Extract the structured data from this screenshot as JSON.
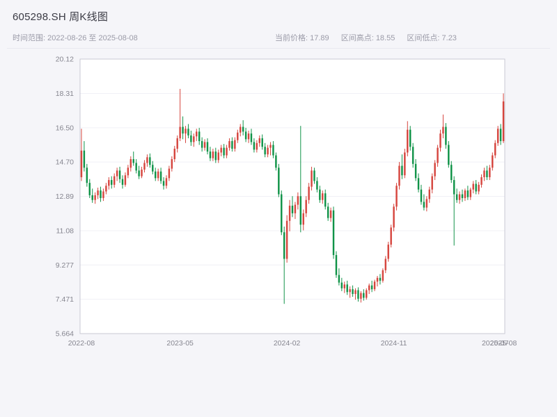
{
  "header": {
    "title": "605298.SH 周K线图"
  },
  "subheader": {
    "time_range": "时间范围: 2022-08-26 至 2025-08-08",
    "stats": [
      "当前价格: 17.89",
      "区间高点: 18.55",
      "区间低点: 7.23"
    ]
  },
  "chart_data": {
    "type": "candlestick",
    "symbol": "605298.SH",
    "period": "weekly",
    "title": "605298.SH 周K线图",
    "start_date": "2022-08-26",
    "end_date": "2025-08-08",
    "current_price": 17.89,
    "range_high": 18.55,
    "range_low": 7.23,
    "y_min": 5.664,
    "y_max": 20.12,
    "grid": true,
    "legend": "none",
    "up_color": "#d6453e",
    "down_color": "#109348",
    "axis_text_color": "#85858f",
    "plot_bg_color": "#ffffff",
    "y_ticks": [
      {
        "label": "20.12",
        "value": 20.12
      },
      {
        "label": "18.31",
        "value": 18.31
      },
      {
        "label": "16.50",
        "value": 16.5
      },
      {
        "label": "14.70",
        "value": 14.7
      },
      {
        "label": "12.89",
        "value": 12.89
      },
      {
        "label": "11.08",
        "value": 11.08
      },
      {
        "label": "9.277",
        "value": 9.277
      },
      {
        "label": "7.471",
        "value": 7.471
      },
      {
        "label": "5.664",
        "value": 5.664
      }
    ],
    "x_ticks": [
      {
        "label": "2022-08",
        "index": 0
      },
      {
        "label": "2023-05",
        "index": 36
      },
      {
        "label": "2024-02",
        "index": 75
      },
      {
        "label": "2024-11",
        "index": 114
      },
      {
        "label": "2025-07",
        "index": 151
      },
      {
        "label": "2025-08",
        "index": 154
      }
    ],
    "candles": [
      [
        13.9,
        16.45,
        13.7,
        15.3
      ],
      [
        15.3,
        15.8,
        14.2,
        14.4
      ],
      [
        14.4,
        14.6,
        13.4,
        13.6
      ],
      [
        13.6,
        13.8,
        12.8,
        12.95
      ],
      [
        12.95,
        13.3,
        12.55,
        12.7
      ],
      [
        12.7,
        13.1,
        12.5,
        12.95
      ],
      [
        12.95,
        13.35,
        12.75,
        13.2
      ],
      [
        13.2,
        13.4,
        12.6,
        12.8
      ],
      [
        12.8,
        13.3,
        12.65,
        13.15
      ],
      [
        13.15,
        13.6,
        13.0,
        13.45
      ],
      [
        13.45,
        13.9,
        13.25,
        13.75
      ],
      [
        13.75,
        13.95,
        13.3,
        13.5
      ],
      [
        13.5,
        14.1,
        13.35,
        13.95
      ],
      [
        13.95,
        14.4,
        13.7,
        14.25
      ],
      [
        14.25,
        14.45,
        13.6,
        13.8
      ],
      [
        13.8,
        14.0,
        13.3,
        13.5
      ],
      [
        13.5,
        14.15,
        13.4,
        14.0
      ],
      [
        14.0,
        14.55,
        13.85,
        14.4
      ],
      [
        14.4,
        15.0,
        14.2,
        14.85
      ],
      [
        14.85,
        15.25,
        14.5,
        14.65
      ],
      [
        14.65,
        14.85,
        14.1,
        14.25
      ],
      [
        14.25,
        14.5,
        13.8,
        13.95
      ],
      [
        13.95,
        14.45,
        13.85,
        14.3
      ],
      [
        14.3,
        14.8,
        14.15,
        14.65
      ],
      [
        14.65,
        15.1,
        14.45,
        14.95
      ],
      [
        14.95,
        15.15,
        14.4,
        14.55
      ],
      [
        14.55,
        14.75,
        14.05,
        14.2
      ],
      [
        14.2,
        14.4,
        13.7,
        13.85
      ],
      [
        13.85,
        14.35,
        13.7,
        14.2
      ],
      [
        14.2,
        14.4,
        13.55,
        13.7
      ],
      [
        13.7,
        13.9,
        13.25,
        13.45
      ],
      [
        13.45,
        14.0,
        13.3,
        13.85
      ],
      [
        13.85,
        14.5,
        13.7,
        14.35
      ],
      [
        14.35,
        15.0,
        14.2,
        14.85
      ],
      [
        14.85,
        15.55,
        14.7,
        15.4
      ],
      [
        15.4,
        16.1,
        15.2,
        15.95
      ],
      [
        15.95,
        18.55,
        15.8,
        16.55
      ],
      [
        16.55,
        17.1,
        15.9,
        16.2
      ],
      [
        16.2,
        16.6,
        15.7,
        16.45
      ],
      [
        16.45,
        16.7,
        15.95,
        16.1
      ],
      [
        16.1,
        16.35,
        15.55,
        15.75
      ],
      [
        15.75,
        16.2,
        15.5,
        16.05
      ],
      [
        16.05,
        16.45,
        15.8,
        16.3
      ],
      [
        16.3,
        16.5,
        15.6,
        15.8
      ],
      [
        15.8,
        16.0,
        15.25,
        15.45
      ],
      [
        15.45,
        15.9,
        15.3,
        15.75
      ],
      [
        15.75,
        15.95,
        15.1,
        15.25
      ],
      [
        15.25,
        15.5,
        14.75,
        14.9
      ],
      [
        14.9,
        15.4,
        14.75,
        15.25
      ],
      [
        15.25,
        15.45,
        14.65,
        14.8
      ],
      [
        14.8,
        15.35,
        14.65,
        15.2
      ],
      [
        15.2,
        15.6,
        15.0,
        15.45
      ],
      [
        15.45,
        15.65,
        14.9,
        15.05
      ],
      [
        15.05,
        15.6,
        14.9,
        15.45
      ],
      [
        15.45,
        15.95,
        15.3,
        15.8
      ],
      [
        15.8,
        16.0,
        15.25,
        15.4
      ],
      [
        15.4,
        16.0,
        15.25,
        15.85
      ],
      [
        15.85,
        16.4,
        15.7,
        16.25
      ],
      [
        16.25,
        16.7,
        16.05,
        16.55
      ],
      [
        16.55,
        16.9,
        16.1,
        16.3
      ],
      [
        16.3,
        16.5,
        15.75,
        15.9
      ],
      [
        15.9,
        16.35,
        15.7,
        16.2
      ],
      [
        16.2,
        16.45,
        15.6,
        15.75
      ],
      [
        15.75,
        15.95,
        15.2,
        15.35
      ],
      [
        15.35,
        15.85,
        15.2,
        15.7
      ],
      [
        15.7,
        16.1,
        15.5,
        15.95
      ],
      [
        15.95,
        16.15,
        15.35,
        15.5
      ],
      [
        15.5,
        15.7,
        14.95,
        15.1
      ],
      [
        15.1,
        15.6,
        14.95,
        15.45
      ],
      [
        15.45,
        15.75,
        15.05,
        15.6
      ],
      [
        15.6,
        15.8,
        14.9,
        15.05
      ],
      [
        15.05,
        15.2,
        14.25,
        14.4
      ],
      [
        14.4,
        14.6,
        12.85,
        13.0
      ],
      [
        13.0,
        13.2,
        10.85,
        11.0
      ],
      [
        11.0,
        11.3,
        7.23,
        9.6
      ],
      [
        9.6,
        11.9,
        9.4,
        11.6
      ],
      [
        11.6,
        12.7,
        11.05,
        12.4
      ],
      [
        12.4,
        12.9,
        11.8,
        12.0
      ],
      [
        12.0,
        12.6,
        11.7,
        12.45
      ],
      [
        12.45,
        13.1,
        12.2,
        12.9
      ],
      [
        12.9,
        16.6,
        11.0,
        11.4
      ],
      [
        11.4,
        12.2,
        11.1,
        12.0
      ],
      [
        12.0,
        12.9,
        11.8,
        12.7
      ],
      [
        12.7,
        13.6,
        12.5,
        13.4
      ],
      [
        13.4,
        14.45,
        13.2,
        14.25
      ],
      [
        14.25,
        14.4,
        13.55,
        13.7
      ],
      [
        13.7,
        13.9,
        13.1,
        13.25
      ],
      [
        13.25,
        13.45,
        12.55,
        12.7
      ],
      [
        12.7,
        13.2,
        12.5,
        13.05
      ],
      [
        13.05,
        13.25,
        12.2,
        12.35
      ],
      [
        12.35,
        12.55,
        11.6,
        11.75
      ],
      [
        11.75,
        12.3,
        11.55,
        12.15
      ],
      [
        12.15,
        12.35,
        9.6,
        9.8
      ],
      [
        9.8,
        10.0,
        8.6,
        8.75
      ],
      [
        8.75,
        9.1,
        8.2,
        8.35
      ],
      [
        8.35,
        8.6,
        7.9,
        8.05
      ],
      [
        8.05,
        8.4,
        7.8,
        8.25
      ],
      [
        8.25,
        8.45,
        7.7,
        7.85
      ],
      [
        7.85,
        8.15,
        7.55,
        8.0
      ],
      [
        8.0,
        8.2,
        7.6,
        7.75
      ],
      [
        7.75,
        8.05,
        7.45,
        7.95
      ],
      [
        7.95,
        8.1,
        7.35,
        7.5
      ],
      [
        7.5,
        7.9,
        7.3,
        7.8
      ],
      [
        7.8,
        8.0,
        7.4,
        7.55
      ],
      [
        7.55,
        8.05,
        7.45,
        7.95
      ],
      [
        7.95,
        8.3,
        7.75,
        8.2
      ],
      [
        8.2,
        8.45,
        7.85,
        8.0
      ],
      [
        8.0,
        8.5,
        7.9,
        8.4
      ],
      [
        8.4,
        8.7,
        8.15,
        8.6
      ],
      [
        8.6,
        8.8,
        8.25,
        8.45
      ],
      [
        8.45,
        9.1,
        8.35,
        9.0
      ],
      [
        9.0,
        9.75,
        8.85,
        9.6
      ],
      [
        9.6,
        10.5,
        9.45,
        10.35
      ],
      [
        10.35,
        11.4,
        10.2,
        11.25
      ],
      [
        11.25,
        12.5,
        11.05,
        12.35
      ],
      [
        12.35,
        13.6,
        12.15,
        13.45
      ],
      [
        13.45,
        14.7,
        13.25,
        14.5
      ],
      [
        14.5,
        15.1,
        13.8,
        14.0
      ],
      [
        14.0,
        15.4,
        13.85,
        15.2
      ],
      [
        15.2,
        16.85,
        15.0,
        16.4
      ],
      [
        16.4,
        16.6,
        15.3,
        15.5
      ],
      [
        15.5,
        15.7,
        14.4,
        14.6
      ],
      [
        14.6,
        14.85,
        13.7,
        13.85
      ],
      [
        13.85,
        14.1,
        13.1,
        13.25
      ],
      [
        13.25,
        13.5,
        12.45,
        12.6
      ],
      [
        12.6,
        13.0,
        12.15,
        12.3
      ],
      [
        12.3,
        12.9,
        12.1,
        12.75
      ],
      [
        12.75,
        13.4,
        12.55,
        13.25
      ],
      [
        13.25,
        14.1,
        13.05,
        13.95
      ],
      [
        13.95,
        14.8,
        13.75,
        14.65
      ],
      [
        14.65,
        15.6,
        14.45,
        15.45
      ],
      [
        15.45,
        16.4,
        15.25,
        16.2
      ],
      [
        16.2,
        17.2,
        15.95,
        16.55
      ],
      [
        16.55,
        16.75,
        15.4,
        15.6
      ],
      [
        15.6,
        15.8,
        14.4,
        14.55
      ],
      [
        14.55,
        14.75,
        13.6,
        13.75
      ],
      [
        13.75,
        13.95,
        10.3,
        13.0
      ],
      [
        13.0,
        13.3,
        12.55,
        12.7
      ],
      [
        12.7,
        13.15,
        12.5,
        13.0
      ],
      [
        13.0,
        13.25,
        12.6,
        12.8
      ],
      [
        12.8,
        13.3,
        12.65,
        13.2
      ],
      [
        13.2,
        13.45,
        12.7,
        12.85
      ],
      [
        12.85,
        13.35,
        12.7,
        13.25
      ],
      [
        13.25,
        13.7,
        13.05,
        13.55
      ],
      [
        13.55,
        13.75,
        13.0,
        13.15
      ],
      [
        13.15,
        13.65,
        13.0,
        13.5
      ],
      [
        13.5,
        14.05,
        13.35,
        13.9
      ],
      [
        13.9,
        14.4,
        13.7,
        14.25
      ],
      [
        14.25,
        14.5,
        13.75,
        13.9
      ],
      [
        13.9,
        14.55,
        13.75,
        14.4
      ],
      [
        14.4,
        15.2,
        14.25,
        15.05
      ],
      [
        15.05,
        15.85,
        14.9,
        15.7
      ],
      [
        15.7,
        16.6,
        15.55,
        16.45
      ],
      [
        16.45,
        16.7,
        15.6,
        15.8
      ],
      [
        15.8,
        18.31,
        15.7,
        17.89
      ]
    ]
  }
}
